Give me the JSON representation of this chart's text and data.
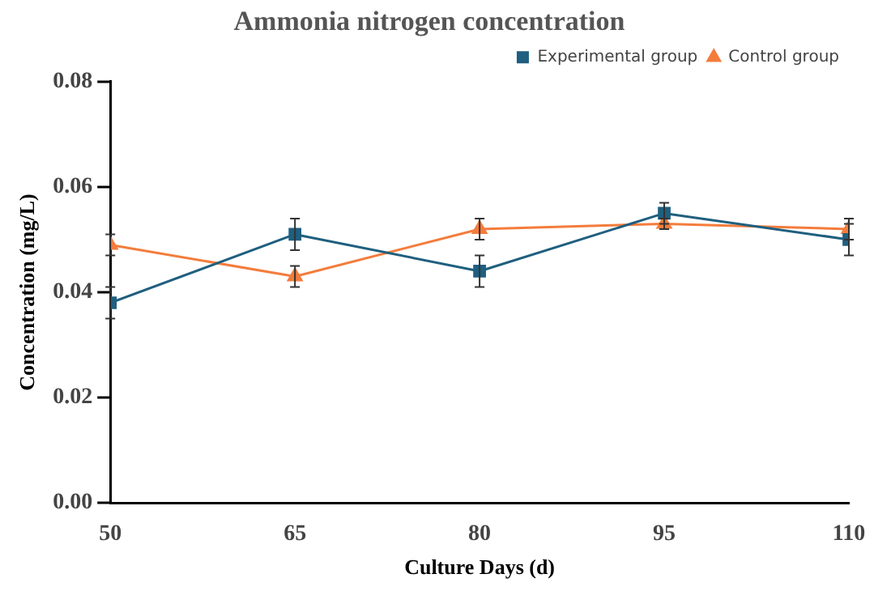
{
  "chart_data": {
    "type": "line",
    "title": "Ammonia nitrogen concentration",
    "xlabel": "Culture Days (d)",
    "ylabel": "Concentration (mg/L)",
    "x": [
      50,
      65,
      80,
      95,
      110
    ],
    "xlim": [
      50,
      110
    ],
    "xticks": [
      50,
      65,
      80,
      95,
      110
    ],
    "ylim": [
      0,
      0.08
    ],
    "yticks": [
      {
        "value": 0,
        "label": "0.00"
      },
      {
        "value": 0.02,
        "label": "0.02"
      },
      {
        "value": 0.04,
        "label": "0.04"
      },
      {
        "value": 0.06,
        "label": "0.06"
      },
      {
        "value": 0.08,
        "label": "0.08"
      }
    ],
    "grid": false,
    "legend": "top right",
    "line_style": "solid",
    "series": [
      {
        "name": "Experimental group",
        "color": "#1f5f7f",
        "marker": "square",
        "values": [
          0.038,
          0.051,
          0.044,
          0.055,
          0.05
        ],
        "errors": [
          0.003,
          0.003,
          0.003,
          0.002,
          0.003
        ]
      },
      {
        "name": "Control group",
        "color": "#f47c3c",
        "marker": "triangle",
        "values": [
          0.049,
          0.043,
          0.052,
          0.053,
          0.052
        ],
        "errors": [
          0.002,
          0.002,
          0.002,
          0.001,
          0.002
        ]
      }
    ]
  }
}
